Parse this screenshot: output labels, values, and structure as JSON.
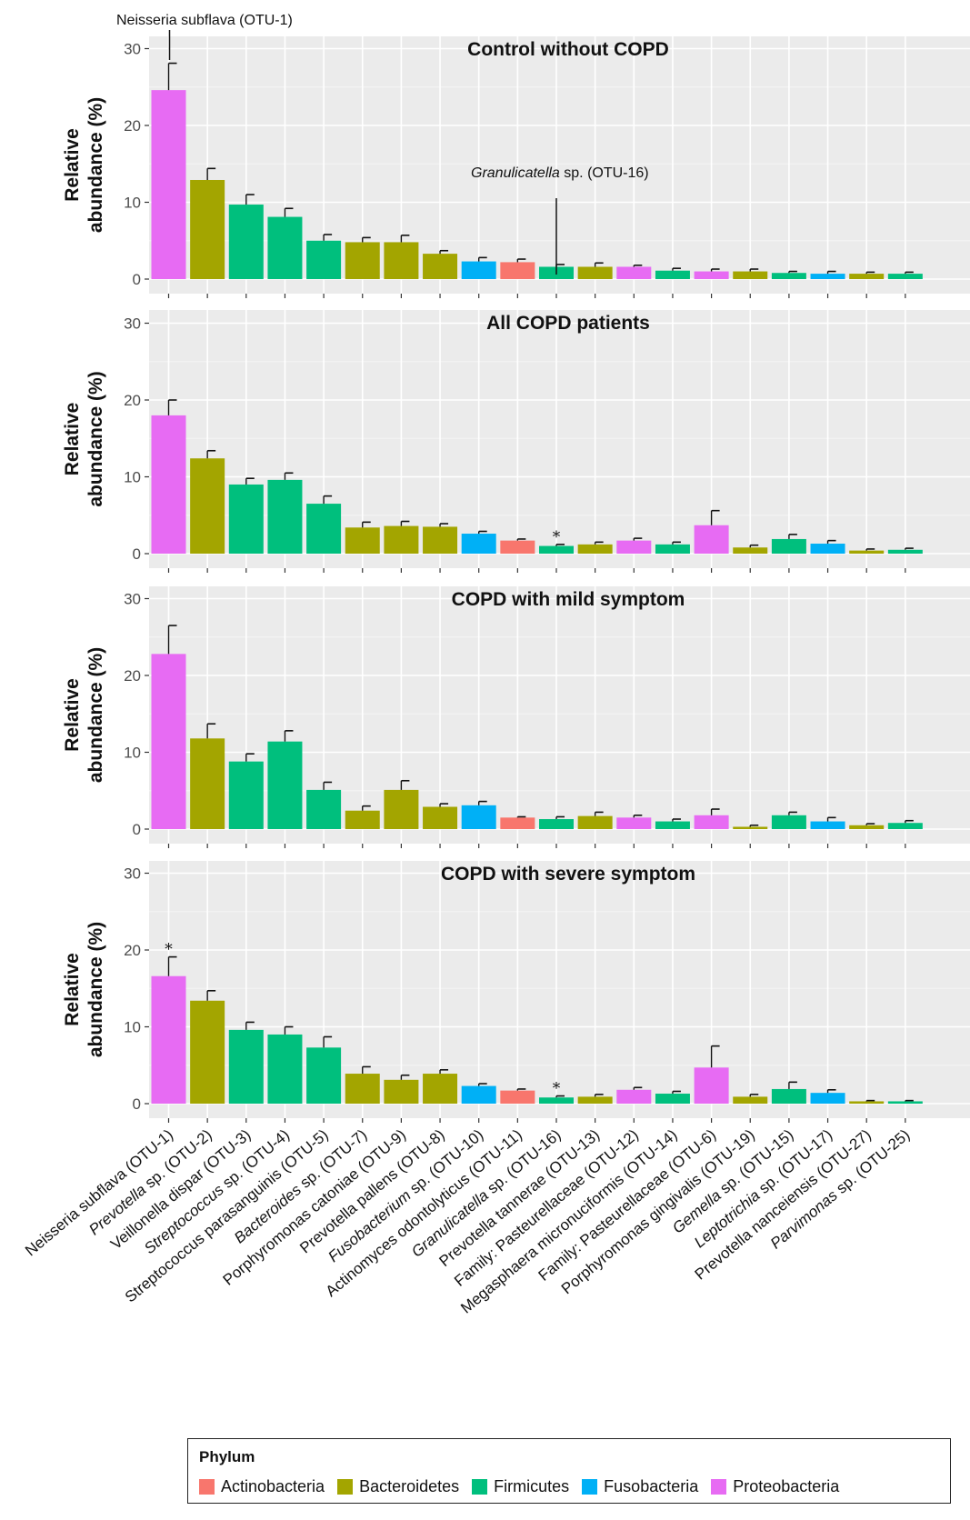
{
  "chart_data": {
    "type": "bar",
    "ylabel": "Relative abundance (%)",
    "ylabel_lines": [
      "Relative",
      "abundance (%)"
    ],
    "ylim": [
      0,
      30
    ],
    "yticks": [
      0,
      10,
      20,
      30
    ],
    "grid": true,
    "legend_position": "bottom",
    "categories": [
      {
        "label": "Neisseria subflava (OTU-1)",
        "italic": "",
        "rest": "Neisseria subflava (OTU-1)",
        "phylum": "Proteobacteria"
      },
      {
        "label": "Prevotella sp. (OTU-2)",
        "italic": "Prevotella",
        "rest": " sp. (OTU-2)",
        "phylum": "Bacteroidetes"
      },
      {
        "label": "Veillonella dispar (OTU-3)",
        "italic": "",
        "rest": "Veillonella dispar (OTU-3)",
        "phylum": "Firmicutes"
      },
      {
        "label": "Streptococcus sp. (OTU-4)",
        "italic": "Streptococcus",
        "rest": " sp. (OTU-4)",
        "phylum": "Firmicutes"
      },
      {
        "label": "Streptococcus parasanguinis (OTU-5)",
        "italic": "",
        "rest": "Streptococcus parasanguinis (OTU-5)",
        "phylum": "Firmicutes"
      },
      {
        "label": "Bacteroides sp. (OTU-7)",
        "italic": "Bacteroides",
        "rest": " sp. (OTU-7)",
        "phylum": "Bacteroidetes"
      },
      {
        "label": "Porphyromonas catoniae (OTU-9)",
        "italic": "",
        "rest": "Porphyromonas catoniae (OTU-9)",
        "phylum": "Bacteroidetes"
      },
      {
        "label": "Prevotella pallens (OTU-8)",
        "italic": "",
        "rest": "Prevotella pallens (OTU-8)",
        "phylum": "Bacteroidetes"
      },
      {
        "label": "Fusobacterium sp. (OTU-10)",
        "italic": "Fusobacterium",
        "rest": " sp. (OTU-10)",
        "phylum": "Fusobacteria"
      },
      {
        "label": "Actinomyces odontolyticus (OTU-11)",
        "italic": "",
        "rest": "Actinomyces odontolyticus (OTU-11)",
        "phylum": "Actinobacteria"
      },
      {
        "label": "Granulicatella sp. (OTU-16)",
        "italic": "Granulicatella",
        "rest": " sp. (OTU-16)",
        "phylum": "Firmicutes"
      },
      {
        "label": "Prevotella tannerae (OTU-13)",
        "italic": "",
        "rest": "Prevotella tannerae (OTU-13)",
        "phylum": "Bacteroidetes"
      },
      {
        "label": "Family: Pasteurellaceae (OTU-12)",
        "italic": "",
        "rest": "Family: Pasteurellaceae (OTU-12)",
        "phylum": "Proteobacteria"
      },
      {
        "label": "Megasphaera micronuciformis (OTU-14)",
        "italic": "",
        "rest": "Megasphaera micronuciformis (OTU-14)",
        "phylum": "Firmicutes"
      },
      {
        "label": "Family: Pasteurellaceae (OTU-6)",
        "italic": "",
        "rest": "Family: Pasteurellaceae (OTU-6)",
        "phylum": "Proteobacteria"
      },
      {
        "label": "Porphyromonas gingivalis (OTU-19)",
        "italic": "",
        "rest": "Porphyromonas gingivalis (OTU-19)",
        "phylum": "Bacteroidetes"
      },
      {
        "label": "Gemella sp. (OTU-15)",
        "italic": "Gemella",
        "rest": " sp. (OTU-15)",
        "phylum": "Firmicutes"
      },
      {
        "label": "Leptotrichia sp. (OTU-17)",
        "italic": "Leptotrichia",
        "rest": " sp. (OTU-17)",
        "phylum": "Fusobacteria"
      },
      {
        "label": "Prevotella nanceiensis (OTU-27)",
        "italic": "",
        "rest": "Prevotella nanceiensis (OTU-27)",
        "phylum": "Bacteroidetes"
      },
      {
        "label": "Parvimonas sp. (OTU-25)",
        "italic": "Parvimonas",
        "rest": " sp. (OTU-25)",
        "phylum": "Firmicutes"
      }
    ],
    "phyla": [
      {
        "name": "Actinobacteria",
        "color": "#F8766D"
      },
      {
        "name": "Bacteroidetes",
        "color": "#A3A500"
      },
      {
        "name": "Firmicutes",
        "color": "#00BF7D"
      },
      {
        "name": "Fusobacteria",
        "color": "#00B0F6"
      },
      {
        "name": "Proteobacteria",
        "color": "#E76BF3"
      }
    ],
    "legend_title": "Phylum",
    "panels": [
      {
        "title": "Control without COPD",
        "values": [
          24.6,
          12.9,
          9.7,
          8.1,
          5.0,
          4.8,
          4.8,
          3.3,
          2.3,
          2.2,
          1.6,
          1.6,
          1.6,
          1.1,
          1.0,
          1.0,
          0.8,
          0.7,
          0.7,
          0.7
        ],
        "errors": [
          3.5,
          1.5,
          1.3,
          1.1,
          0.8,
          0.6,
          0.9,
          0.4,
          0.5,
          0.4,
          0.3,
          0.5,
          0.2,
          0.3,
          0.3,
          0.3,
          0.2,
          0.3,
          0.2,
          0.2
        ],
        "stars": [],
        "annotations": [
          {
            "text": "Neisseria subflava (OTU-1)",
            "italic": "",
            "category": 0,
            "value": 29
          },
          {
            "text": " sp. (OTU-16)",
            "italic": "Granulicatella",
            "category": 10,
            "value": 12.3
          }
        ]
      },
      {
        "title": "All COPD patients",
        "values": [
          18.0,
          12.4,
          9.0,
          9.6,
          6.5,
          3.4,
          3.6,
          3.5,
          2.6,
          1.7,
          1.0,
          1.2,
          1.7,
          1.2,
          3.7,
          0.8,
          1.9,
          1.3,
          0.4,
          0.5
        ],
        "errors": [
          2.0,
          1.0,
          0.8,
          0.9,
          1.0,
          0.7,
          0.6,
          0.4,
          0.3,
          0.2,
          0.2,
          0.3,
          0.3,
          0.3,
          1.9,
          0.3,
          0.6,
          0.4,
          0.2,
          0.2
        ],
        "stars": [
          10
        ],
        "annotations": []
      },
      {
        "title": "COPD with mild symptom",
        "values": [
          22.8,
          11.8,
          8.8,
          11.4,
          5.1,
          2.4,
          5.1,
          2.9,
          3.1,
          1.5,
          1.3,
          1.7,
          1.5,
          1.0,
          1.8,
          0.3,
          1.8,
          1.0,
          0.5,
          0.8
        ],
        "errors": [
          3.7,
          1.9,
          1.0,
          1.4,
          1.0,
          0.6,
          1.2,
          0.4,
          0.5,
          0.1,
          0.3,
          0.5,
          0.3,
          0.3,
          0.8,
          0.2,
          0.4,
          0.5,
          0.2,
          0.3
        ],
        "stars": [],
        "annotations": []
      },
      {
        "title": "COPD with severe symptom",
        "values": [
          16.6,
          13.4,
          9.6,
          9.0,
          7.3,
          3.9,
          3.1,
          3.9,
          2.3,
          1.7,
          0.8,
          0.9,
          1.8,
          1.3,
          4.7,
          0.9,
          1.9,
          1.4,
          0.3,
          0.3
        ],
        "errors": [
          2.5,
          1.3,
          1.0,
          1.0,
          1.4,
          0.9,
          0.6,
          0.5,
          0.3,
          0.2,
          0.2,
          0.3,
          0.3,
          0.3,
          2.8,
          0.3,
          0.9,
          0.4,
          0.1,
          0.1
        ],
        "stars": [
          0,
          10
        ],
        "annotations": []
      }
    ]
  }
}
